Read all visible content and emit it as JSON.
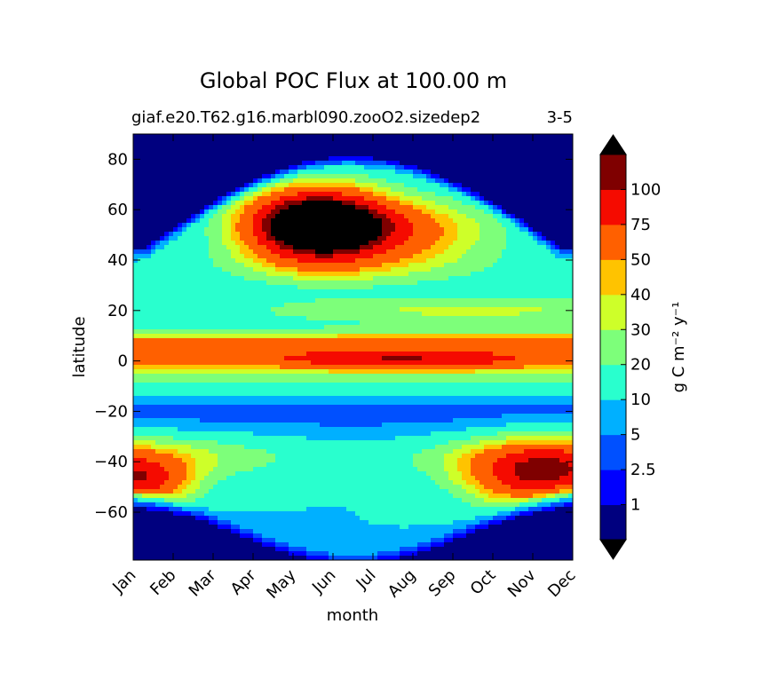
{
  "chart_data": {
    "type": "heatmap",
    "title": "Global POC Flux at 100.00 m",
    "subtitle_left": "giaf.e20.T62.g16.marbl090.zooO2.sizedep2",
    "subtitle_right": "3-5",
    "xlabel": "month",
    "ylabel": "latitude",
    "x_ticks": [
      "Jan",
      "Feb",
      "Mar",
      "Apr",
      "May",
      "Jun",
      "Jul",
      "Aug",
      "Sep",
      "Oct",
      "Nov",
      "Dec"
    ],
    "x_range": [
      1,
      12
    ],
    "y_ticks": [
      80,
      60,
      40,
      20,
      0,
      -20,
      -40,
      -60
    ],
    "y_range": [
      -79,
      90
    ],
    "colorbar": {
      "label": "g C m⁻² y⁻¹",
      "levels": [
        1,
        2.5,
        5,
        10,
        20,
        30,
        40,
        50,
        75,
        100
      ],
      "tick_labels": [
        "1",
        "2.5",
        "5",
        "10",
        "20",
        "30",
        "40",
        "50",
        "75",
        "100"
      ],
      "colors": [
        "#00007f",
        "#0000ff",
        "#0050ff",
        "#00b0ff",
        "#29ffce",
        "#7dff7a",
        "#ceff29",
        "#ffc300",
        "#ff6000",
        "#f50b00",
        "#7f0000"
      ],
      "extend": "both",
      "over_color": "#000000",
      "under_color": "#000000"
    },
    "field_note_free": true
  }
}
